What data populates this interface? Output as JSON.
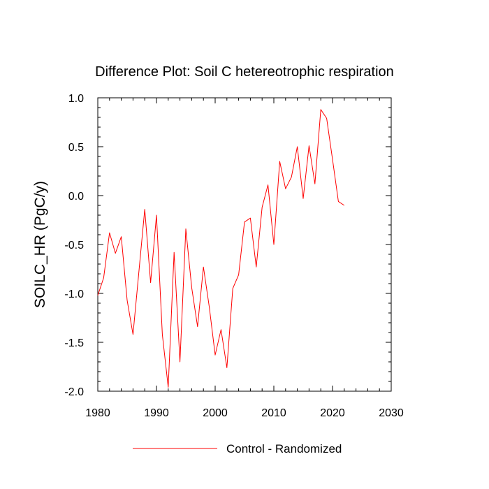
{
  "chart_data": {
    "type": "line",
    "title": "Difference Plot: Soil C hetereotrophic respiration",
    "xlabel": "",
    "ylabel": "SOILC_HR  (PgC/y)",
    "xlim": [
      1980,
      2030
    ],
    "ylim": [
      -2.0,
      1.0
    ],
    "xticks": [
      1980,
      1990,
      2000,
      2010,
      2020,
      2030
    ],
    "xtick_labels": [
      "1980",
      "1990",
      "2000",
      "2010",
      "2020",
      "2030"
    ],
    "yticks": [
      -2.0,
      -1.5,
      -1.0,
      -0.5,
      0.0,
      0.5,
      1.0
    ],
    "ytick_labels": [
      "-2.0",
      "-1.5",
      "-1.0",
      "-0.5",
      "0.0",
      "0.5",
      "1.0"
    ],
    "grid": false,
    "legend_position": "bottom-center",
    "series": [
      {
        "name": "Control - Randomized",
        "color": "#ff0000",
        "x": [
          1980,
          1981,
          1982,
          1983,
          1984,
          1985,
          1986,
          1987,
          1988,
          1989,
          1990,
          1991,
          1992,
          1993,
          1994,
          1995,
          1996,
          1997,
          1998,
          1999,
          2000,
          2001,
          2002,
          2003,
          2004,
          2005,
          2006,
          2007,
          2008,
          2009,
          2010,
          2011,
          2012,
          2013,
          2014,
          2015,
          2016,
          2017,
          2018,
          2019,
          2020,
          2021,
          2022
        ],
        "values": [
          -1.02,
          -0.84,
          -0.38,
          -0.59,
          -0.42,
          -1.07,
          -1.42,
          -0.78,
          -0.14,
          -0.89,
          -0.2,
          -1.42,
          -1.96,
          -0.58,
          -1.7,
          -0.34,
          -0.94,
          -1.34,
          -0.73,
          -1.14,
          -1.63,
          -1.37,
          -1.76,
          -0.95,
          -0.81,
          -0.27,
          -0.23,
          -0.73,
          -0.12,
          0.11,
          -0.5,
          0.35,
          0.07,
          0.19,
          0.5,
          -0.03,
          0.51,
          0.12,
          0.88,
          0.79,
          0.37,
          -0.06,
          -0.1
        ]
      }
    ]
  }
}
